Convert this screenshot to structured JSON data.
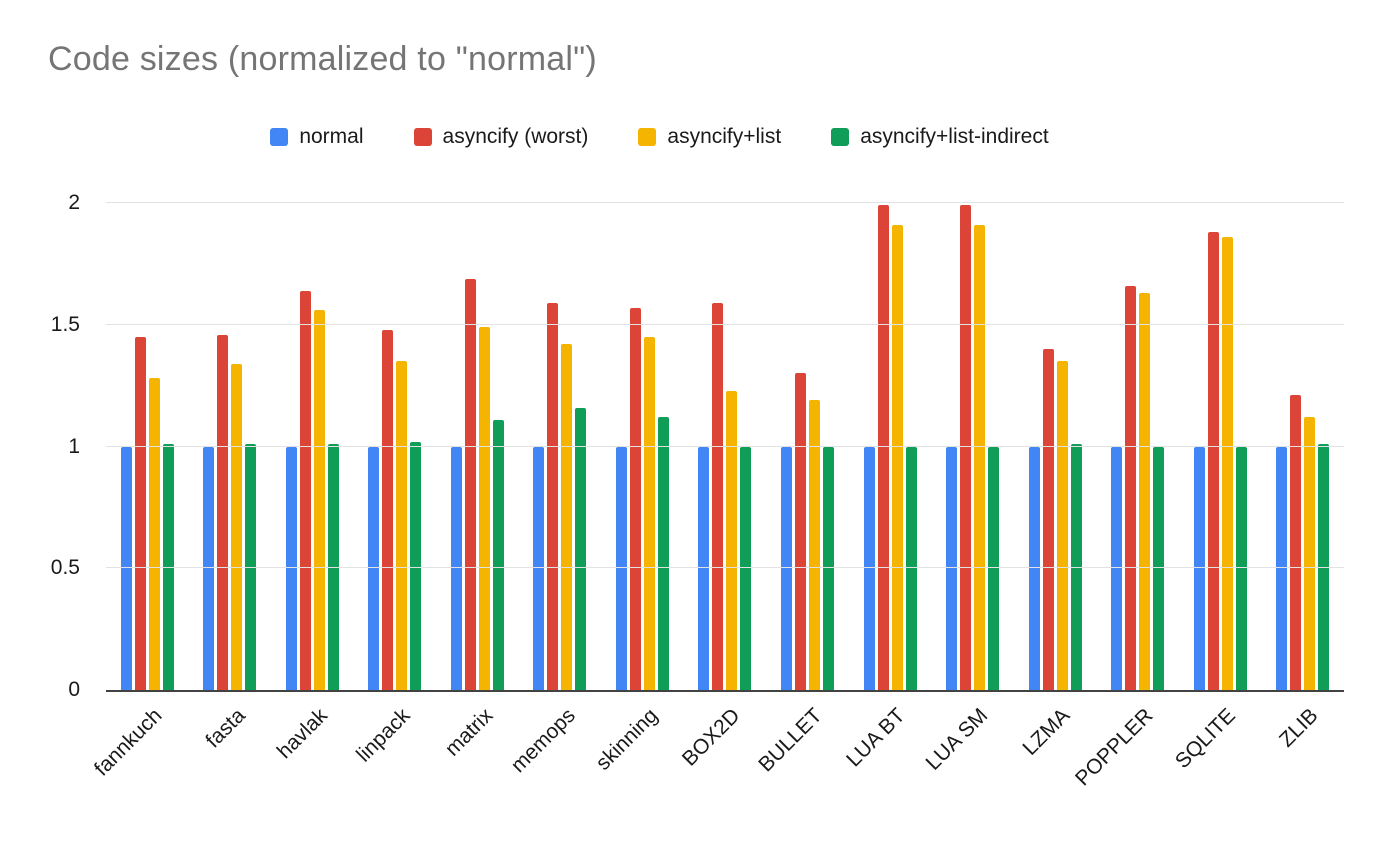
{
  "chart_data": {
    "type": "bar",
    "title": "Code sizes (normalized to \"normal\")",
    "categories": [
      "fannkuch",
      "fasta",
      "havlak",
      "linpack",
      "matrix",
      "memops",
      "skinning",
      "BOX2D",
      "BULLET",
      "LUA BT",
      "LUA SM",
      "LZMA",
      "POPPLER",
      "SQLITE",
      "ZLIB"
    ],
    "series": [
      {
        "name": "normal",
        "color": "#4285F4",
        "values": [
          1.0,
          1.0,
          1.0,
          1.0,
          1.0,
          1.0,
          1.0,
          1.0,
          1.0,
          1.0,
          1.0,
          1.0,
          1.0,
          1.0,
          1.0
        ]
      },
      {
        "name": "asyncify (worst)",
        "color": "#DB4437",
        "values": [
          1.45,
          1.46,
          1.64,
          1.48,
          1.69,
          1.59,
          1.57,
          1.59,
          1.3,
          1.99,
          1.99,
          1.4,
          1.66,
          1.88,
          1.21
        ]
      },
      {
        "name": "asyncify+list",
        "color": "#F4B400",
        "values": [
          1.28,
          1.34,
          1.56,
          1.35,
          1.49,
          1.42,
          1.45,
          1.23,
          1.19,
          1.91,
          1.91,
          1.35,
          1.63,
          1.86,
          1.12
        ]
      },
      {
        "name": "asyncify+list-indirect",
        "color": "#0F9D58",
        "values": [
          1.01,
          1.01,
          1.01,
          1.02,
          1.11,
          1.16,
          1.12,
          1.0,
          1.0,
          1.0,
          1.0,
          1.01,
          1.0,
          1.0,
          1.01
        ]
      }
    ],
    "xlabel": "",
    "ylabel": "",
    "ylim": [
      0,
      2
    ],
    "yticks": [
      0,
      0.5,
      1,
      1.5,
      2
    ],
    "grid": true,
    "legend_position": "top",
    "colors": {
      "title_text": "#757575",
      "axis_text": "#1a1a1a",
      "gridline": "#e2e2e2",
      "axis_line": "#424242",
      "background": "#ffffff"
    }
  }
}
